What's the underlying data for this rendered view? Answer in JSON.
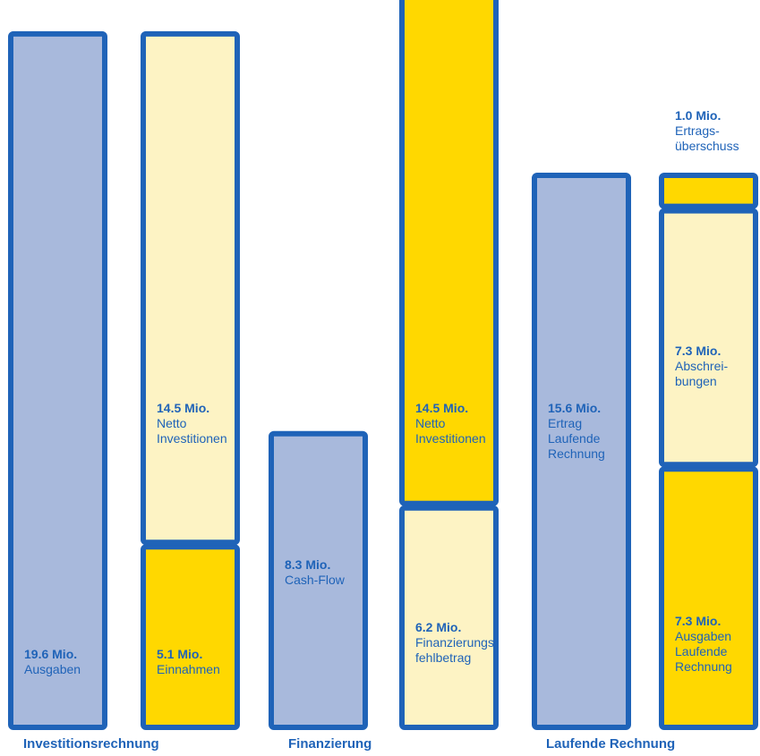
{
  "chart_data": {
    "type": "bar",
    "stacked": true,
    "unit": "Mio.",
    "groups": [
      {
        "label": "Investitionsrechnung"
      },
      {
        "label": "Finanzierung"
      },
      {
        "label": "Laufende Rechnung"
      }
    ],
    "columns": [
      {
        "group": 0,
        "segments": [
          {
            "value": 19.6,
            "value_text": "19.6 Mio.",
            "desc": "Ausgaben",
            "color": "#a8b9dc"
          }
        ]
      },
      {
        "group": 0,
        "segments": [
          {
            "value": 5.1,
            "value_text": "5.1 Mio.",
            "desc": "Einnahmen",
            "color": "#ffd800"
          },
          {
            "value": 14.5,
            "value_text": "14.5 Mio.",
            "desc": "Netto Investitionen",
            "color": "#fdf3c4"
          }
        ]
      },
      {
        "group": 1,
        "segments": [
          {
            "value": 8.3,
            "value_text": "8.3 Mio.",
            "desc": "Cash-Flow",
            "color": "#a8b9dc"
          }
        ]
      },
      {
        "group": 1,
        "segments": [
          {
            "value": 6.2,
            "value_text": "6.2 Mio.",
            "desc": "Finanzierungs-\nfehlbetrag",
            "color": "#fdf3c4"
          },
          {
            "value": 14.5,
            "value_text": "14.5 Mio.",
            "desc": "Netto Investitionen",
            "color": "#ffd800"
          }
        ]
      },
      {
        "group": 2,
        "segments": [
          {
            "value": 15.6,
            "value_text": "15.6 Mio.",
            "desc": "Ertrag Laufende Rechnung",
            "color": "#a8b9dc"
          }
        ]
      },
      {
        "group": 2,
        "segments": [
          {
            "value": 7.3,
            "value_text": "7.3 Mio.",
            "desc": "Ausgaben Laufende Rechnung",
            "color": "#ffd800"
          },
          {
            "value": 7.3,
            "value_text": "7.3 Mio.",
            "desc": "Abschrei-\nbungen",
            "color": "#fdf3c4"
          },
          {
            "value": 1.0,
            "value_text": "1.0 Mio.",
            "desc": "Ertrags-\nüberschuss",
            "color": "#ffd800",
            "label_above": true
          }
        ]
      }
    ],
    "outline_color": "#1f63b8",
    "text_color": "#1f63b8"
  }
}
